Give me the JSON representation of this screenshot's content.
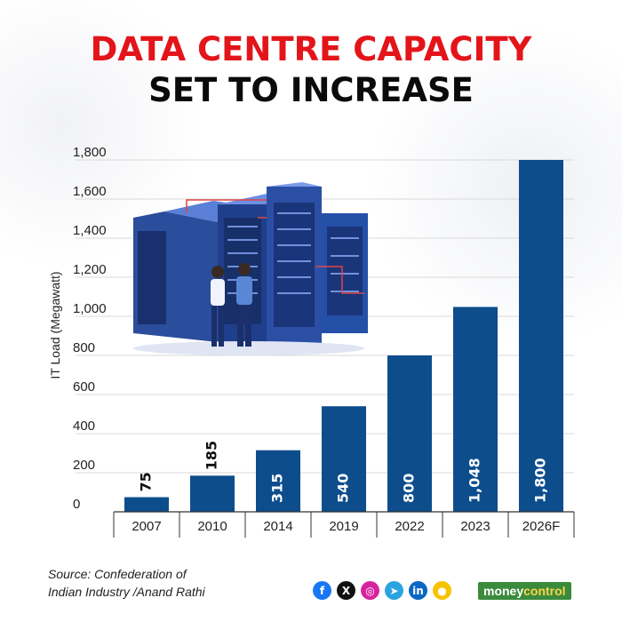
{
  "title_line1": "DATA CENTRE CAPACITY",
  "title_line2": "SET TO INCREASE",
  "source_line1": "Source: Confederation of",
  "source_line2": "Indian Industry /Anand Rathi",
  "brand": {
    "part1": "money",
    "part2": "control"
  },
  "social_icons": [
    "facebook-icon",
    "x-icon",
    "instagram-icon",
    "telegram-icon",
    "linkedin-icon",
    "koo-icon"
  ],
  "colors": {
    "title_accent": "#e3151a",
    "bar": "#0d4d8c",
    "brand": "#3a8b3c"
  },
  "chart_data": {
    "type": "bar",
    "categories": [
      "2007",
      "2010",
      "2014",
      "2019",
      "2022",
      "2023",
      "2026F"
    ],
    "values": [
      75,
      185,
      315,
      540,
      800,
      1048,
      1800
    ],
    "value_labels": [
      "75",
      "185",
      "315",
      "540",
      "800",
      "1,048",
      "1,800"
    ],
    "ylabel": "IT Load (Megawatt)",
    "ylim": [
      0,
      1800
    ],
    "yticks": [
      0,
      200,
      400,
      600,
      800,
      1000,
      1200,
      1400,
      1600,
      1800
    ],
    "ytick_labels": [
      "0",
      "200",
      "400",
      "600",
      "800",
      "1,000",
      "1,200",
      "1,400",
      "1,600",
      "1,800"
    ],
    "grid": true,
    "bar_label_orientation": "vertical"
  }
}
